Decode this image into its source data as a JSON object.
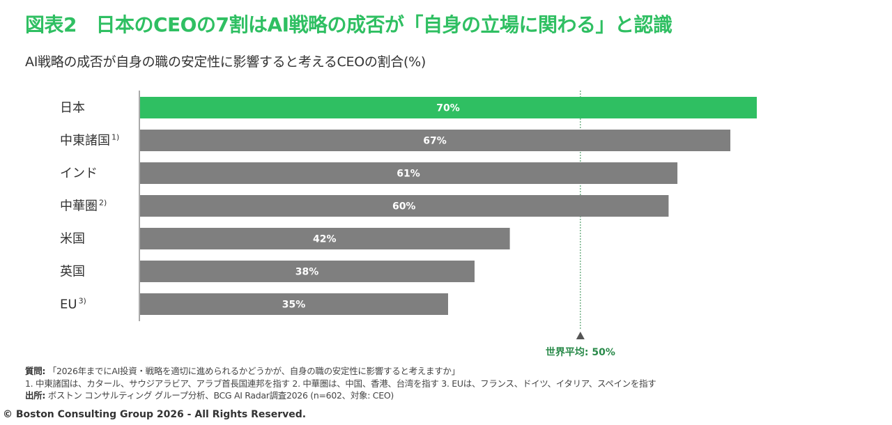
{
  "header": {
    "title": "図表2　日本のCEOの7割はAI戦略の成否が「自身の立場に関わる」と認識"
  },
  "chart_data": {
    "type": "bar",
    "orientation": "horizontal",
    "title": "AI戦略の成否が自身の職の安定性に影響すると考えるCEOの割合(%)",
    "categories": [
      "日本",
      "中東諸国",
      "インド",
      "中華圏",
      "米国",
      "英国",
      "EU"
    ],
    "category_notes": [
      "",
      "1)",
      "",
      "2)",
      "",
      "",
      "3)"
    ],
    "values": [
      70,
      67,
      61,
      60,
      42,
      38,
      35
    ],
    "value_labels": [
      "70%",
      "67%",
      "61%",
      "60%",
      "42%",
      "38%",
      "35%"
    ],
    "highlight_index": 0,
    "xlim": [
      0,
      70
    ],
    "reference_line": {
      "value": 50,
      "label": "世界平均: 50%"
    },
    "colors": {
      "highlight": "#2fbf62",
      "bar": "#7f7f7f",
      "axis": "#555555",
      "reference": "#2a8a4a"
    }
  },
  "footnotes": {
    "question_label": "質問:",
    "question_text": "「2026年までにAI投資・戦略を適切に進められるかどうかが、自身の職の安定性に影響すると考えますか」",
    "notes_line": "1. 中東諸国は、カタール、サウジアラビア、アラブ首長国連邦を指す 2. 中華圏は、中国、香港、台湾を指す 3. EUは、フランス、ドイツ、イタリア、スペインを指す",
    "source_label": "出所:",
    "source_text": "ボストン コンサルティング グループ分析、BCG AI Radar調査2026 (n=602、対象: CEO)",
    "copyright": "© Boston Consulting Group 2026 - All Rights Reserved."
  }
}
